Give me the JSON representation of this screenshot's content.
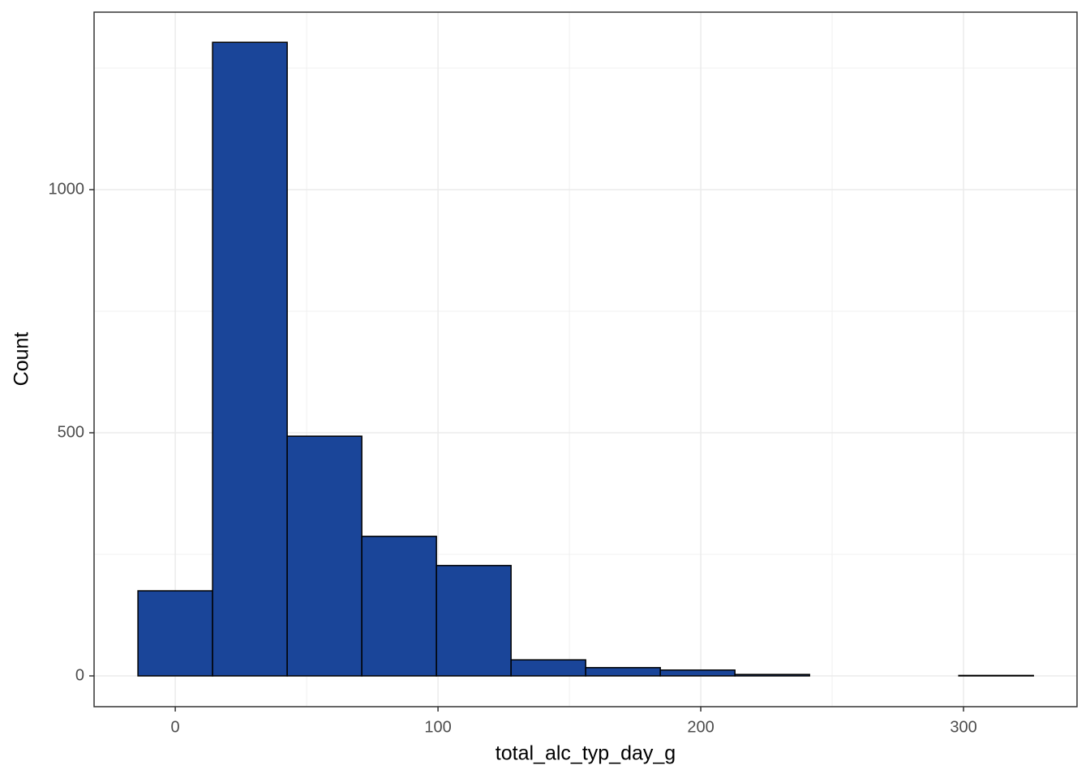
{
  "chart_data": {
    "type": "histogram",
    "x_label": "total_alc_typ_day_g",
    "y_label": "Count",
    "bins": [
      -14.2,
      14.2,
      42.6,
      71.0,
      99.4,
      127.8,
      156.2,
      184.6,
      213.0,
      241.4,
      269.8,
      298.2,
      326.6
    ],
    "values": [
      175,
      1303,
      493,
      287,
      227,
      33,
      17,
      12,
      3,
      0,
      0,
      1
    ],
    "color": "#1a4599",
    "edge_color": "#000000",
    "xlim": [
      -30.9,
      343.2
    ],
    "ylim": [
      -63.3,
      1365
    ],
    "xticks": [
      0,
      100,
      200,
      300
    ],
    "yticks": [
      0,
      500,
      1000
    ],
    "xminor": [
      50,
      150,
      250
    ],
    "yminor": [
      250,
      750,
      1250
    ],
    "grid": true
  }
}
